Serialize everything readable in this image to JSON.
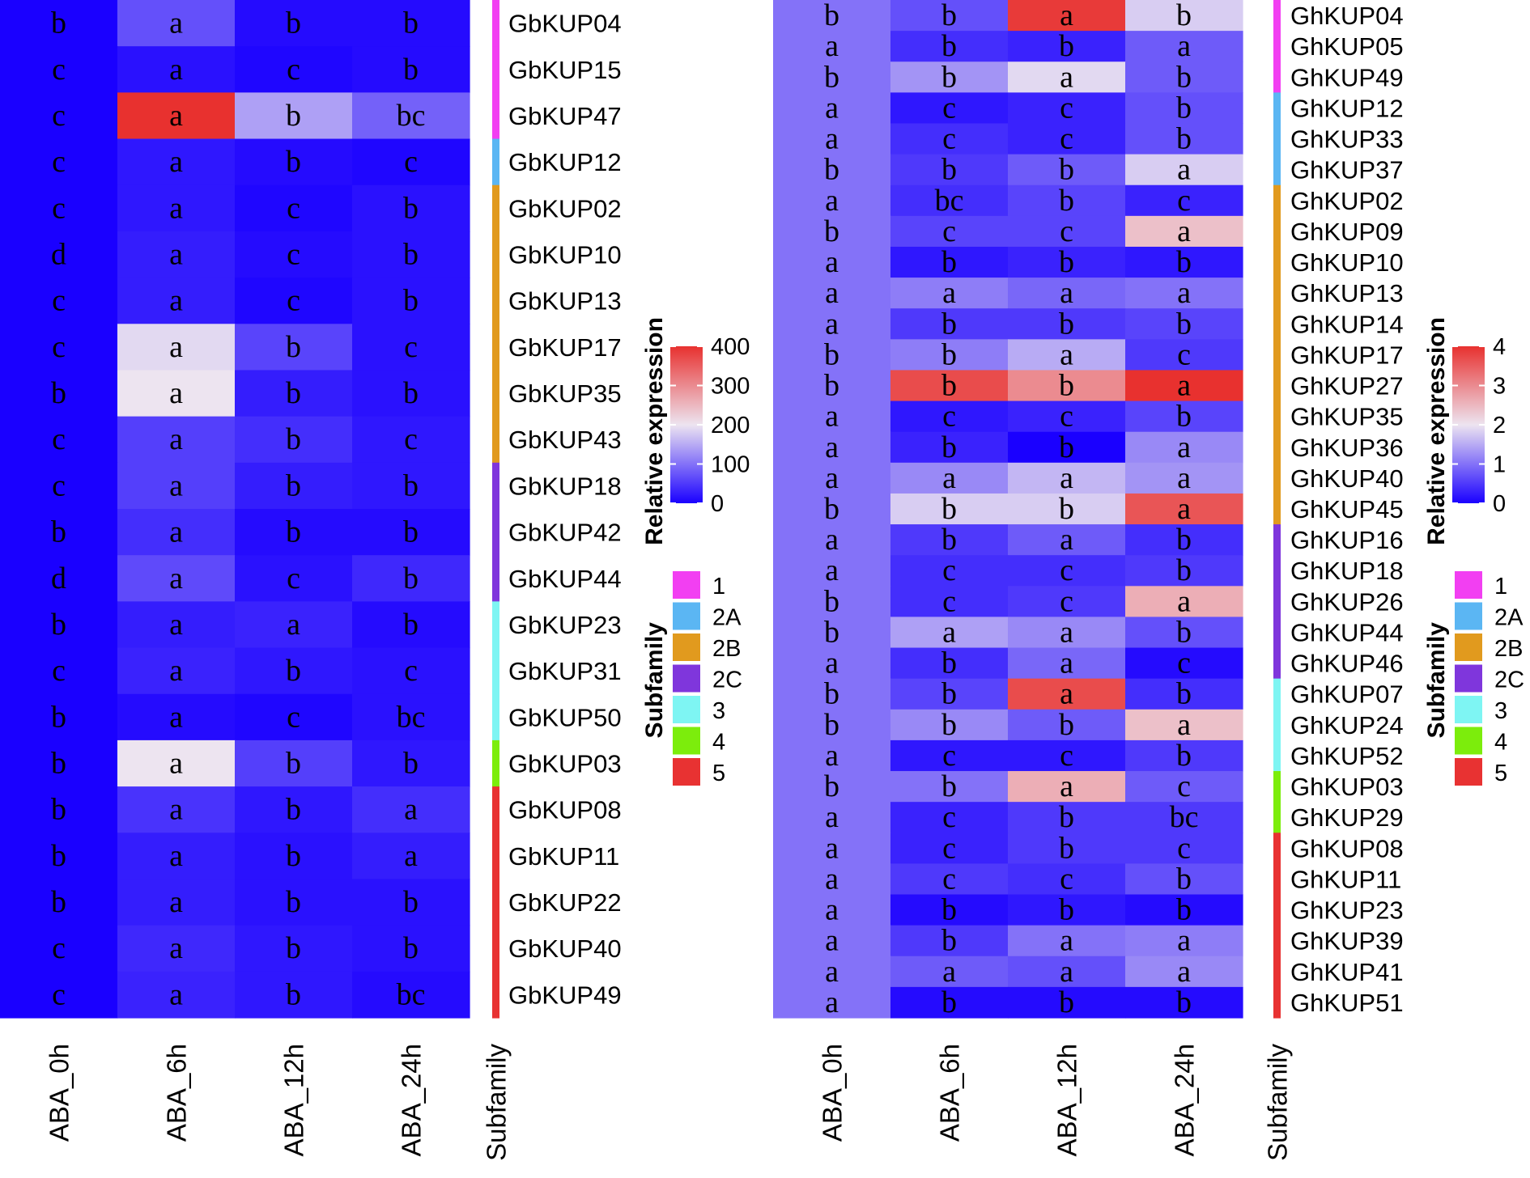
{
  "chart_data": [
    {
      "type": "heatmap",
      "species": "Gb",
      "columns": [
        "ABA_0h",
        "ABA_6h",
        "ABA_12h",
        "ABA_24h"
      ],
      "subfamily_label": "Subfamily",
      "rows": [
        {
          "gene": "GbKUP04",
          "subfamily": "1",
          "values": [
            0,
            70,
            10,
            10
          ],
          "letters": [
            "b",
            "a",
            "b",
            "b"
          ]
        },
        {
          "gene": "GbKUP15",
          "subfamily": "1",
          "values": [
            0,
            15,
            5,
            10
          ],
          "letters": [
            "c",
            "a",
            "c",
            "b"
          ]
        },
        {
          "gene": "GbKUP47",
          "subfamily": "1",
          "values": [
            0,
            400,
            140,
            85
          ],
          "letters": [
            "c",
            "a",
            "b",
            "bc"
          ]
        },
        {
          "gene": "GbKUP12",
          "subfamily": "2A",
          "values": [
            0,
            20,
            10,
            5
          ],
          "letters": [
            "c",
            "a",
            "b",
            "c"
          ]
        },
        {
          "gene": "GbKUP02",
          "subfamily": "2B",
          "values": [
            0,
            20,
            5,
            15
          ],
          "letters": [
            "c",
            "a",
            "c",
            "b"
          ]
        },
        {
          "gene": "GbKUP10",
          "subfamily": "2B",
          "values": [
            0,
            25,
            10,
            15
          ],
          "letters": [
            "d",
            "a",
            "c",
            "b"
          ]
        },
        {
          "gene": "GbKUP13",
          "subfamily": "2B",
          "values": [
            0,
            25,
            5,
            15
          ],
          "letters": [
            "c",
            "a",
            "c",
            "b"
          ]
        },
        {
          "gene": "GbKUP17",
          "subfamily": "2B",
          "values": [
            0,
            190,
            60,
            15
          ],
          "letters": [
            "c",
            "a",
            "b",
            "c"
          ]
        },
        {
          "gene": "GbKUP35",
          "subfamily": "2B",
          "values": [
            0,
            200,
            25,
            15
          ],
          "letters": [
            "b",
            "a",
            "b",
            "b"
          ]
        },
        {
          "gene": "GbKUP43",
          "subfamily": "2B",
          "values": [
            0,
            55,
            40,
            20
          ],
          "letters": [
            "c",
            "a",
            "b",
            "c"
          ]
        },
        {
          "gene": "GbKUP18",
          "subfamily": "2C",
          "values": [
            0,
            55,
            25,
            20
          ],
          "letters": [
            "c",
            "a",
            "b",
            "b"
          ]
        },
        {
          "gene": "GbKUP42",
          "subfamily": "2C",
          "values": [
            0,
            40,
            10,
            10
          ],
          "letters": [
            "b",
            "a",
            "b",
            "b"
          ]
        },
        {
          "gene": "GbKUP44",
          "subfamily": "2C",
          "values": [
            0,
            65,
            15,
            35
          ],
          "letters": [
            "d",
            "a",
            "c",
            "b"
          ]
        },
        {
          "gene": "GbKUP23",
          "subfamily": "3",
          "values": [
            0,
            25,
            30,
            10
          ],
          "letters": [
            "b",
            "a",
            "a",
            "b"
          ]
        },
        {
          "gene": "GbKUP31",
          "subfamily": "3",
          "values": [
            0,
            30,
            20,
            15
          ],
          "letters": [
            "c",
            "a",
            "b",
            "c"
          ]
        },
        {
          "gene": "GbKUP50",
          "subfamily": "3",
          "values": [
            0,
            10,
            5,
            15
          ],
          "letters": [
            "b",
            "a",
            "c",
            "bc"
          ]
        },
        {
          "gene": "GbKUP03",
          "subfamily": "4",
          "values": [
            0,
            200,
            55,
            20
          ],
          "letters": [
            "b",
            "a",
            "b",
            "b"
          ]
        },
        {
          "gene": "GbKUP08",
          "subfamily": "5",
          "values": [
            0,
            45,
            20,
            40
          ],
          "letters": [
            "b",
            "a",
            "b",
            "a"
          ]
        },
        {
          "gene": "GbKUP11",
          "subfamily": "5",
          "values": [
            0,
            25,
            15,
            25
          ],
          "letters": [
            "b",
            "a",
            "b",
            "a"
          ]
        },
        {
          "gene": "GbKUP22",
          "subfamily": "5",
          "values": [
            0,
            25,
            15,
            15
          ],
          "letters": [
            "b",
            "a",
            "b",
            "b"
          ]
        },
        {
          "gene": "GbKUP40",
          "subfamily": "5",
          "values": [
            0,
            35,
            20,
            15
          ],
          "letters": [
            "c",
            "a",
            "b",
            "b"
          ]
        },
        {
          "gene": "GbKUP49",
          "subfamily": "5",
          "values": [
            0,
            30,
            20,
            10
          ],
          "letters": [
            "c",
            "a",
            "b",
            "bc"
          ]
        }
      ],
      "color_scale": {
        "title": "Relative expression",
        "min": 0,
        "max": 400,
        "ticks": [
          400,
          300,
          200,
          100,
          0
        ],
        "low_color": "#1a00ff",
        "mid_color": "#ede4f0",
        "high_color": "#e8312f"
      }
    },
    {
      "type": "heatmap",
      "species": "Gh",
      "columns": [
        "ABA_0h",
        "ABA_6h",
        "ABA_12h",
        "ABA_24h"
      ],
      "subfamily_label": "Subfamily",
      "rows": [
        {
          "gene": "GhKUP04",
          "subfamily": "1",
          "values": [
            1,
            0.7,
            3.9,
            1.8
          ],
          "letters": [
            "b",
            "b",
            "a",
            "b"
          ]
        },
        {
          "gene": "GhKUP05",
          "subfamily": "1",
          "values": [
            1,
            0.4,
            0.3,
            0.8
          ],
          "letters": [
            "a",
            "b",
            "b",
            "a"
          ]
        },
        {
          "gene": "GhKUP49",
          "subfamily": "1",
          "values": [
            1,
            1.3,
            1.9,
            0.8
          ],
          "letters": [
            "b",
            "b",
            "a",
            "b"
          ]
        },
        {
          "gene": "GhKUP12",
          "subfamily": "2A",
          "values": [
            1,
            0.2,
            0.3,
            0.7
          ],
          "letters": [
            "a",
            "c",
            "c",
            "b"
          ]
        },
        {
          "gene": "GhKUP33",
          "subfamily": "2A",
          "values": [
            1,
            0.4,
            0.3,
            0.7
          ],
          "letters": [
            "a",
            "c",
            "c",
            "b"
          ]
        },
        {
          "gene": "GhKUP37",
          "subfamily": "2A",
          "values": [
            1,
            0.5,
            0.8,
            1.8
          ],
          "letters": [
            "b",
            "b",
            "b",
            "a"
          ]
        },
        {
          "gene": "GhKUP02",
          "subfamily": "2B",
          "values": [
            1,
            0.4,
            0.6,
            0.3
          ],
          "letters": [
            "a",
            "bc",
            "b",
            "c"
          ]
        },
        {
          "gene": "GhKUP09",
          "subfamily": "2B",
          "values": [
            1,
            0.6,
            0.6,
            2.4
          ],
          "letters": [
            "b",
            "c",
            "c",
            "a"
          ]
        },
        {
          "gene": "GhKUP10",
          "subfamily": "2B",
          "values": [
            1,
            0.2,
            0.3,
            0.2
          ],
          "letters": [
            "a",
            "b",
            "b",
            "b"
          ]
        },
        {
          "gene": "GhKUP13",
          "subfamily": "2B",
          "values": [
            1,
            1.1,
            0.9,
            1.0
          ],
          "letters": [
            "a",
            "a",
            "a",
            "a"
          ]
        },
        {
          "gene": "GhKUP14",
          "subfamily": "2B",
          "values": [
            1,
            0.5,
            0.5,
            0.6
          ],
          "letters": [
            "a",
            "b",
            "b",
            "b"
          ]
        },
        {
          "gene": "GhKUP17",
          "subfamily": "2B",
          "values": [
            1,
            1.1,
            1.5,
            0.5
          ],
          "letters": [
            "b",
            "b",
            "a",
            "c"
          ]
        },
        {
          "gene": "GhKUP27",
          "subfamily": "2B",
          "values": [
            1,
            3.7,
            3.0,
            4.0
          ],
          "letters": [
            "b",
            "b",
            "b",
            "a"
          ]
        },
        {
          "gene": "GhKUP35",
          "subfamily": "2B",
          "values": [
            1,
            0.2,
            0.3,
            0.6
          ],
          "letters": [
            "a",
            "c",
            "c",
            "b"
          ]
        },
        {
          "gene": "GhKUP36",
          "subfamily": "2B",
          "values": [
            1,
            0.3,
            0.0,
            1.2
          ],
          "letters": [
            "a",
            "b",
            "b",
            "a"
          ]
        },
        {
          "gene": "GhKUP40",
          "subfamily": "2B",
          "values": [
            1,
            1.2,
            1.6,
            1.3
          ],
          "letters": [
            "a",
            "a",
            "a",
            "a"
          ]
        },
        {
          "gene": "GhKUP45",
          "subfamily": "2B",
          "values": [
            1,
            1.8,
            1.8,
            3.6
          ],
          "letters": [
            "b",
            "b",
            "b",
            "a"
          ]
        },
        {
          "gene": "GhKUP16",
          "subfamily": "2C",
          "values": [
            1,
            0.5,
            0.8,
            0.4
          ],
          "letters": [
            "a",
            "b",
            "a",
            "b"
          ]
        },
        {
          "gene": "GhKUP18",
          "subfamily": "2C",
          "values": [
            1,
            0.4,
            0.4,
            0.5
          ],
          "letters": [
            "a",
            "c",
            "c",
            "b"
          ]
        },
        {
          "gene": "GhKUP26",
          "subfamily": "2C",
          "values": [
            1,
            0.4,
            0.5,
            2.6
          ],
          "letters": [
            "b",
            "c",
            "c",
            "a"
          ]
        },
        {
          "gene": "GhKUP44",
          "subfamily": "2C",
          "values": [
            1,
            1.4,
            1.2,
            0.7
          ],
          "letters": [
            "b",
            "a",
            "a",
            "b"
          ]
        },
        {
          "gene": "GhKUP46",
          "subfamily": "2C",
          "values": [
            1,
            0.4,
            0.9,
            0.1
          ],
          "letters": [
            "a",
            "b",
            "a",
            "c"
          ]
        },
        {
          "gene": "GhKUP07",
          "subfamily": "3",
          "values": [
            1,
            0.6,
            3.7,
            0.4
          ],
          "letters": [
            "b",
            "b",
            "a",
            "b"
          ]
        },
        {
          "gene": "GhKUP24",
          "subfamily": "3",
          "values": [
            1,
            1.2,
            0.8,
            2.4
          ],
          "letters": [
            "b",
            "b",
            "b",
            "a"
          ]
        },
        {
          "gene": "GhKUP52",
          "subfamily": "3",
          "values": [
            1,
            0.2,
            0.2,
            0.5
          ],
          "letters": [
            "a",
            "c",
            "c",
            "b"
          ]
        },
        {
          "gene": "GhKUP03",
          "subfamily": "4",
          "values": [
            1,
            1.0,
            2.6,
            0.8
          ],
          "letters": [
            "b",
            "b",
            "a",
            "c"
          ]
        },
        {
          "gene": "GhKUP29",
          "subfamily": "4",
          "values": [
            1,
            0.3,
            0.5,
            0.5
          ],
          "letters": [
            "a",
            "c",
            "b",
            "bc"
          ]
        },
        {
          "gene": "GhKUP08",
          "subfamily": "5",
          "values": [
            1,
            0.3,
            0.5,
            0.5
          ],
          "letters": [
            "a",
            "c",
            "b",
            "c"
          ]
        },
        {
          "gene": "GhKUP11",
          "subfamily": "5",
          "values": [
            1,
            0.5,
            0.4,
            0.7
          ],
          "letters": [
            "a",
            "c",
            "c",
            "b"
          ]
        },
        {
          "gene": "GhKUP23",
          "subfamily": "5",
          "values": [
            1,
            0.1,
            0.2,
            0.1
          ],
          "letters": [
            "a",
            "b",
            "b",
            "b"
          ]
        },
        {
          "gene": "GhKUP39",
          "subfamily": "5",
          "values": [
            1,
            0.5,
            1.0,
            1.1
          ],
          "letters": [
            "a",
            "b",
            "a",
            "a"
          ]
        },
        {
          "gene": "GhKUP41",
          "subfamily": "5",
          "values": [
            1,
            0.8,
            0.7,
            1.2
          ],
          "letters": [
            "a",
            "a",
            "a",
            "a"
          ]
        },
        {
          "gene": "GhKUP51",
          "subfamily": "5",
          "values": [
            1,
            0.1,
            0.1,
            0.1
          ],
          "letters": [
            "a",
            "b",
            "b",
            "b"
          ]
        }
      ],
      "color_scale": {
        "title": "Relative expression",
        "min": 0,
        "max": 4,
        "ticks": [
          4,
          3,
          2,
          1,
          0
        ],
        "low_color": "#1a00ff",
        "mid_color": "#ede4f0",
        "high_color": "#e8312f"
      }
    }
  ],
  "subfamily_legend": {
    "title": "Subfamily",
    "items": [
      {
        "label": "1",
        "color": "#f23ff2"
      },
      {
        "label": "2A",
        "color": "#5bb6f3"
      },
      {
        "label": "2B",
        "color": "#e19a1e"
      },
      {
        "label": "2C",
        "color": "#7f36dc"
      },
      {
        "label": "3",
        "color": "#7ef5f3"
      },
      {
        "label": "4",
        "color": "#7ced0c"
      },
      {
        "label": "5",
        "color": "#e83232"
      }
    ]
  }
}
